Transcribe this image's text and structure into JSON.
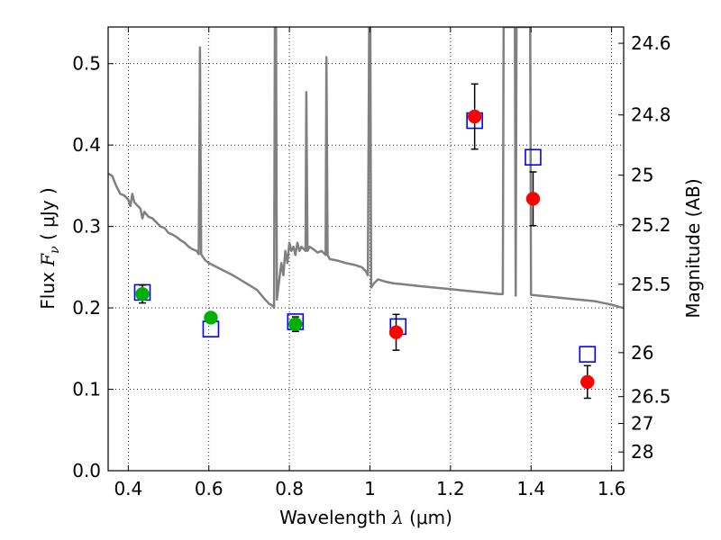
{
  "chart_data": {
    "type": "scatter",
    "title": "",
    "xlabel": {
      "prefix": "Wavelength ",
      "symbol": "λ",
      "unit": " (μm)"
    },
    "ylabel": {
      "prefix": "Flux  ",
      "symbol": "F",
      "subscript": "ν",
      "unit": "  ( μJy )"
    },
    "ylabel_right": "Magnitude (AB)",
    "xlim": [
      0.35,
      1.63
    ],
    "ylim": [
      0.0,
      0.545
    ],
    "grid": true,
    "grid_style": "dotted",
    "x_ticks": [
      0.4,
      0.6,
      0.8,
      1.0,
      1.2,
      1.4,
      1.6
    ],
    "x_tick_labels": [
      "0.4",
      "0.6",
      "0.8",
      "1",
      "1.2",
      "1.4",
      "1.6"
    ],
    "y_ticks": [
      0.0,
      0.1,
      0.2,
      0.3,
      0.4,
      0.5
    ],
    "y_tick_labels": [
      "0.0",
      "0.1",
      "0.2",
      "0.3",
      "0.4",
      "0.5"
    ],
    "right_ticks": [
      {
        "label": "24.6",
        "flux": 0.525
      },
      {
        "label": "24.8",
        "flux": 0.437
      },
      {
        "label": "25",
        "flux": 0.363
      },
      {
        "label": "25.2",
        "flux": 0.302
      },
      {
        "label": "25.5",
        "flux": 0.229
      },
      {
        "label": "26",
        "flux": 0.145
      },
      {
        "label": "26.5",
        "flux": 0.091
      },
      {
        "label": "27",
        "flux": 0.058
      },
      {
        "label": "28",
        "flux": 0.023
      }
    ],
    "colors": {
      "spectrum": "#808080",
      "model_box": "#0000ff",
      "green_points": "#00b000",
      "red_points": "#ff0000",
      "errorbar": "#000000"
    },
    "series": [
      {
        "kind": "line",
        "points": [
          [
            0.35,
            0.365
          ],
          [
            0.36,
            0.362
          ],
          [
            0.37,
            0.35
          ],
          [
            0.38,
            0.34
          ],
          [
            0.39,
            0.338
          ],
          [
            0.4,
            0.333
          ],
          [
            0.405,
            0.325
          ],
          [
            0.41,
            0.34
          ],
          [
            0.415,
            0.33
          ],
          [
            0.42,
            0.327
          ],
          [
            0.43,
            0.322
          ],
          [
            0.435,
            0.31
          ],
          [
            0.44,
            0.318
          ],
          [
            0.45,
            0.312
          ],
          [
            0.46,
            0.31
          ],
          [
            0.47,
            0.305
          ],
          [
            0.48,
            0.3
          ],
          [
            0.49,
            0.298
          ],
          [
            0.5,
            0.292
          ],
          [
            0.51,
            0.29
          ],
          [
            0.52,
            0.287
          ],
          [
            0.53,
            0.283
          ],
          [
            0.54,
            0.28
          ],
          [
            0.55,
            0.275
          ],
          [
            0.56,
            0.272
          ],
          [
            0.57,
            0.27
          ],
          [
            0.575,
            0.266
          ],
          [
            0.578,
            0.52
          ],
          [
            0.581,
            0.266
          ],
          [
            0.59,
            0.259
          ],
          [
            0.6,
            0.255
          ],
          [
            0.62,
            0.25
          ],
          [
            0.64,
            0.245
          ],
          [
            0.66,
            0.24
          ],
          [
            0.68,
            0.234
          ],
          [
            0.7,
            0.228
          ],
          [
            0.72,
            0.222
          ],
          [
            0.74,
            0.21
          ],
          [
            0.75,
            0.205
          ],
          [
            0.76,
            0.202
          ],
          [
            0.762,
            0.2
          ],
          [
            0.764,
            0.545
          ],
          [
            0.767,
            0.545
          ],
          [
            0.769,
            0.21
          ],
          [
            0.775,
            0.235
          ],
          [
            0.78,
            0.255
          ],
          [
            0.785,
            0.24
          ],
          [
            0.79,
            0.27
          ],
          [
            0.795,
            0.255
          ],
          [
            0.8,
            0.28
          ],
          [
            0.805,
            0.27
          ],
          [
            0.81,
            0.275
          ],
          [
            0.815,
            0.265
          ],
          [
            0.82,
            0.28
          ],
          [
            0.825,
            0.27
          ],
          [
            0.83,
            0.275
          ],
          [
            0.84,
            0.27
          ],
          [
            0.842,
            0.465
          ],
          [
            0.845,
            0.27
          ],
          [
            0.85,
            0.275
          ],
          [
            0.86,
            0.272
          ],
          [
            0.87,
            0.268
          ],
          [
            0.88,
            0.27
          ],
          [
            0.89,
            0.265
          ],
          [
            0.892,
            0.508
          ],
          [
            0.895,
            0.265
          ],
          [
            0.9,
            0.26
          ],
          [
            0.92,
            0.258
          ],
          [
            0.94,
            0.255
          ],
          [
            0.96,
            0.253
          ],
          [
            0.98,
            0.25
          ],
          [
            0.99,
            0.245
          ],
          [
            0.995,
            0.24
          ],
          [
            0.998,
            0.545
          ],
          [
            1.001,
            0.545
          ],
          [
            1.003,
            0.225
          ],
          [
            1.01,
            0.23
          ],
          [
            1.02,
            0.235
          ],
          [
            1.04,
            0.232
          ],
          [
            1.06,
            0.23
          ],
          [
            1.08,
            0.229
          ],
          [
            1.1,
            0.228
          ],
          [
            1.12,
            0.227
          ],
          [
            1.14,
            0.226
          ],
          [
            1.16,
            0.225
          ],
          [
            1.18,
            0.224
          ],
          [
            1.2,
            0.223
          ],
          [
            1.22,
            0.222
          ],
          [
            1.24,
            0.221
          ],
          [
            1.26,
            0.22
          ],
          [
            1.28,
            0.219
          ],
          [
            1.3,
            0.218
          ],
          [
            1.32,
            0.217
          ],
          [
            1.33,
            0.217
          ],
          [
            1.332,
            0.545
          ],
          [
            1.36,
            0.545
          ],
          [
            1.362,
            0.215
          ],
          [
            1.364,
            0.545
          ],
          [
            1.39,
            0.545
          ],
          [
            1.395,
            0.545
          ],
          [
            1.398,
            0.545
          ],
          [
            1.4,
            0.216
          ],
          [
            1.42,
            0.215
          ],
          [
            1.44,
            0.214
          ],
          [
            1.46,
            0.213
          ],
          [
            1.48,
            0.212
          ],
          [
            1.5,
            0.211
          ],
          [
            1.52,
            0.21
          ],
          [
            1.54,
            0.209
          ],
          [
            1.56,
            0.208
          ],
          [
            1.58,
            0.206
          ],
          [
            1.6,
            0.204
          ],
          [
            1.62,
            0.201
          ],
          [
            1.63,
            0.2
          ]
        ]
      },
      {
        "kind": "model_boxes",
        "points": [
          [
            0.435,
            0.219
          ],
          [
            0.605,
            0.174
          ],
          [
            0.815,
            0.183
          ],
          [
            1.07,
            0.177
          ],
          [
            1.26,
            0.43
          ],
          [
            1.405,
            0.385
          ],
          [
            1.54,
            0.143
          ]
        ]
      },
      {
        "kind": "green_points",
        "points": [
          {
            "x": 0.435,
            "y": 0.217,
            "err": 0.011
          },
          {
            "x": 0.605,
            "y": 0.188,
            "err": 0.005
          },
          {
            "x": 0.815,
            "y": 0.18,
            "err": 0.009
          }
        ]
      },
      {
        "kind": "red_points",
        "points": [
          {
            "x": 1.065,
            "y": 0.17,
            "err": 0.022
          },
          {
            "x": 1.26,
            "y": 0.435,
            "err": 0.04
          },
          {
            "x": 1.405,
            "y": 0.334,
            "err": 0.033
          },
          {
            "x": 1.54,
            "y": 0.109,
            "err": 0.02
          }
        ]
      }
    ]
  }
}
